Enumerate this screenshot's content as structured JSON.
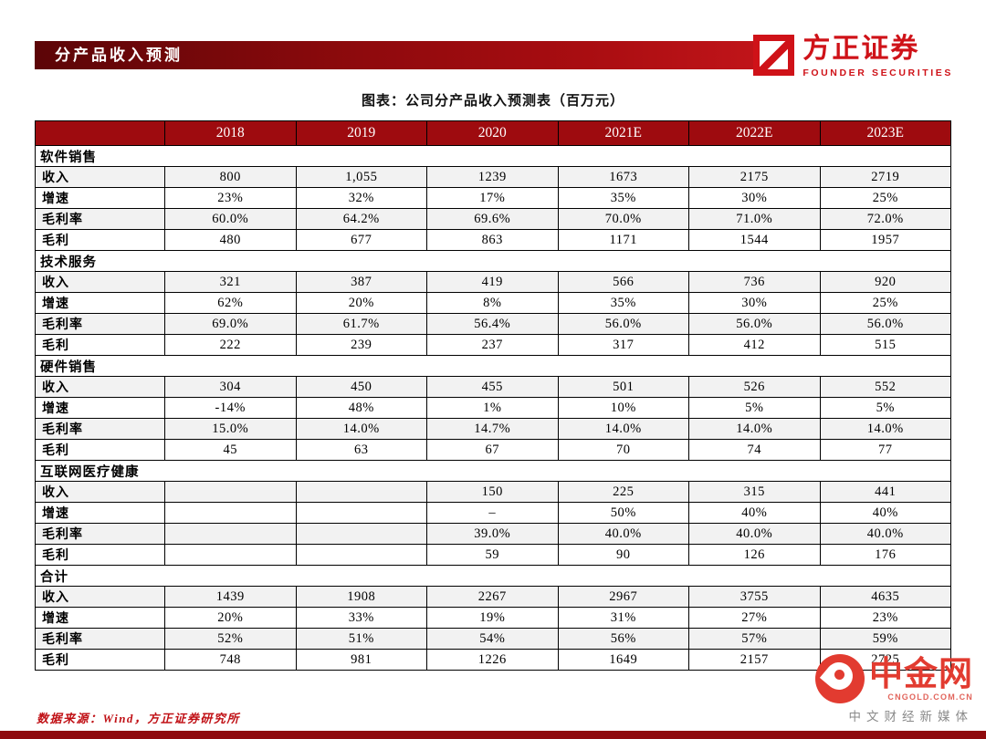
{
  "page": {
    "banner_title": "分产品收入预测",
    "chart_caption": "图表：公司分产品收入预测表（百万元）",
    "source_note": "数据来源：Wind，方正证券研究所"
  },
  "logo": {
    "name_cn": "方正证券",
    "name_en": "FOUNDER SECURITIES"
  },
  "watermark": {
    "name": "中金网",
    "url": "CNGOLD.COM.CN",
    "tagline": "中文财经新媒体"
  },
  "colors": {
    "brand_red": "#9e0b0f",
    "banner_gradient_end": "#c2151a",
    "watermark_red": "#e23b30",
    "row_shade": "#f2f2f2"
  },
  "chart_data": {
    "type": "table",
    "title": "公司分产品收入预测表（百万元）",
    "columns": [
      "",
      "2018",
      "2019",
      "2020",
      "2021E",
      "2022E",
      "2023E"
    ],
    "sections": [
      {
        "name": "软件销售",
        "rows": [
          {
            "label": "收入",
            "values": [
              "800",
              "1,055",
              "1239",
              "1673",
              "2175",
              "2719"
            ]
          },
          {
            "label": "增速",
            "values": [
              "23%",
              "32%",
              "17%",
              "35%",
              "30%",
              "25%"
            ]
          },
          {
            "label": "毛利率",
            "values": [
              "60.0%",
              "64.2%",
              "69.6%",
              "70.0%",
              "71.0%",
              "72.0%"
            ]
          },
          {
            "label": "毛利",
            "values": [
              "480",
              "677",
              "863",
              "1171",
              "1544",
              "1957"
            ]
          }
        ]
      },
      {
        "name": "技术服务",
        "rows": [
          {
            "label": "收入",
            "values": [
              "321",
              "387",
              "419",
              "566",
              "736",
              "920"
            ]
          },
          {
            "label": "增速",
            "values": [
              "62%",
              "20%",
              "8%",
              "35%",
              "30%",
              "25%"
            ]
          },
          {
            "label": "毛利率",
            "values": [
              "69.0%",
              "61.7%",
              "56.4%",
              "56.0%",
              "56.0%",
              "56.0%"
            ]
          },
          {
            "label": "毛利",
            "values": [
              "222",
              "239",
              "237",
              "317",
              "412",
              "515"
            ]
          }
        ]
      },
      {
        "name": "硬件销售",
        "rows": [
          {
            "label": "收入",
            "values": [
              "304",
              "450",
              "455",
              "501",
              "526",
              "552"
            ]
          },
          {
            "label": "增速",
            "values": [
              "-14%",
              "48%",
              "1%",
              "10%",
              "5%",
              "5%"
            ]
          },
          {
            "label": "毛利率",
            "values": [
              "15.0%",
              "14.0%",
              "14.7%",
              "14.0%",
              "14.0%",
              "14.0%"
            ]
          },
          {
            "label": "毛利",
            "values": [
              "45",
              "63",
              "67",
              "70",
              "74",
              "77"
            ]
          }
        ]
      },
      {
        "name": "互联网医疗健康",
        "rows": [
          {
            "label": "收入",
            "values": [
              "",
              "",
              "150",
              "225",
              "315",
              "441"
            ]
          },
          {
            "label": "增速",
            "values": [
              "",
              "",
              "–",
              "50%",
              "40%",
              "40%"
            ]
          },
          {
            "label": "毛利率",
            "values": [
              "",
              "",
              "39.0%",
              "40.0%",
              "40.0%",
              "40.0%"
            ]
          },
          {
            "label": "毛利",
            "values": [
              "",
              "",
              "59",
              "90",
              "126",
              "176"
            ]
          }
        ]
      },
      {
        "name": "合计",
        "rows": [
          {
            "label": "收入",
            "values": [
              "1439",
              "1908",
              "2267",
              "2967",
              "3755",
              "4635"
            ]
          },
          {
            "label": "增速",
            "values": [
              "20%",
              "33%",
              "19%",
              "31%",
              "27%",
              "23%"
            ]
          },
          {
            "label": "毛利率",
            "values": [
              "52%",
              "51%",
              "54%",
              "56%",
              "57%",
              "59%"
            ]
          },
          {
            "label": "毛利",
            "values": [
              "748",
              "981",
              "1226",
              "1649",
              "2157",
              "2725"
            ]
          }
        ]
      }
    ]
  }
}
